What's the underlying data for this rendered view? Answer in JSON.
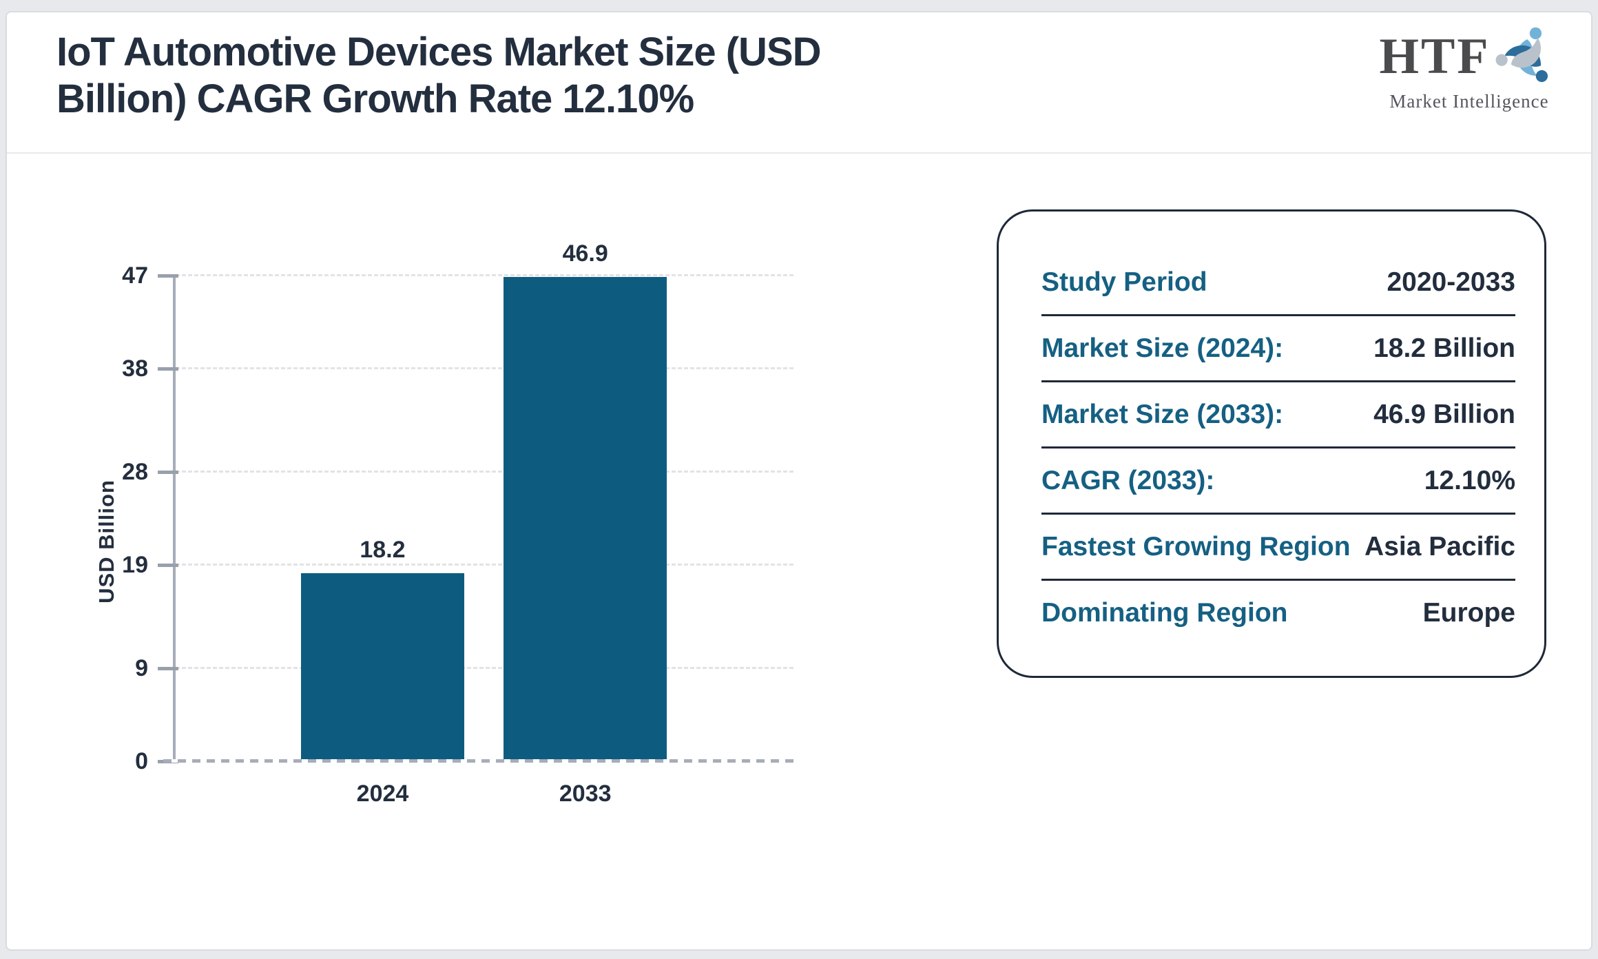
{
  "header": {
    "title_line1": "IoT Automotive Devices Market Size (USD",
    "title_line2": "Billion) CAGR Growth Rate 12.10%"
  },
  "logo": {
    "text": "HTF",
    "subtext": "Market Intelligence",
    "colors": {
      "text": "#4a4b4d",
      "subtext": "#54555d",
      "swirl_light_blue": "#72b2d8",
      "swirl_dark_blue": "#2c6d9c",
      "swirl_gray": "#b9c2ca"
    }
  },
  "chart_data": {
    "type": "bar",
    "title": "IoT Automotive Devices Market Size (USD Billion) CAGR Growth Rate 12.10%",
    "categories": [
      "2024",
      "2033"
    ],
    "values": [
      18.2,
      46.9
    ],
    "bar_labels": [
      "18.2",
      "46.9"
    ],
    "xlabel": "",
    "ylabel": "USD Billion",
    "yticks": [
      0,
      9,
      19,
      28,
      38,
      47
    ],
    "ylim": [
      0,
      47
    ],
    "bar_color": "#0d5c80",
    "grid": true,
    "gridline_style": "dashed",
    "legend": false
  },
  "panel": {
    "label_color": "#156083",
    "value_color": "#222d3d",
    "rows": [
      {
        "label": "Study Period",
        "value": "2020-2033"
      },
      {
        "label": "Market Size (2024):",
        "value": "18.2 Billion"
      },
      {
        "label": "Market Size (2033):",
        "value": "46.9 Billion"
      },
      {
        "label": "CAGR (2033):",
        "value": "12.10%"
      },
      {
        "label": "Fastest Growing Region",
        "value": "Asia Pacific"
      },
      {
        "label": "Dominating Region",
        "value": "Europe"
      }
    ]
  }
}
